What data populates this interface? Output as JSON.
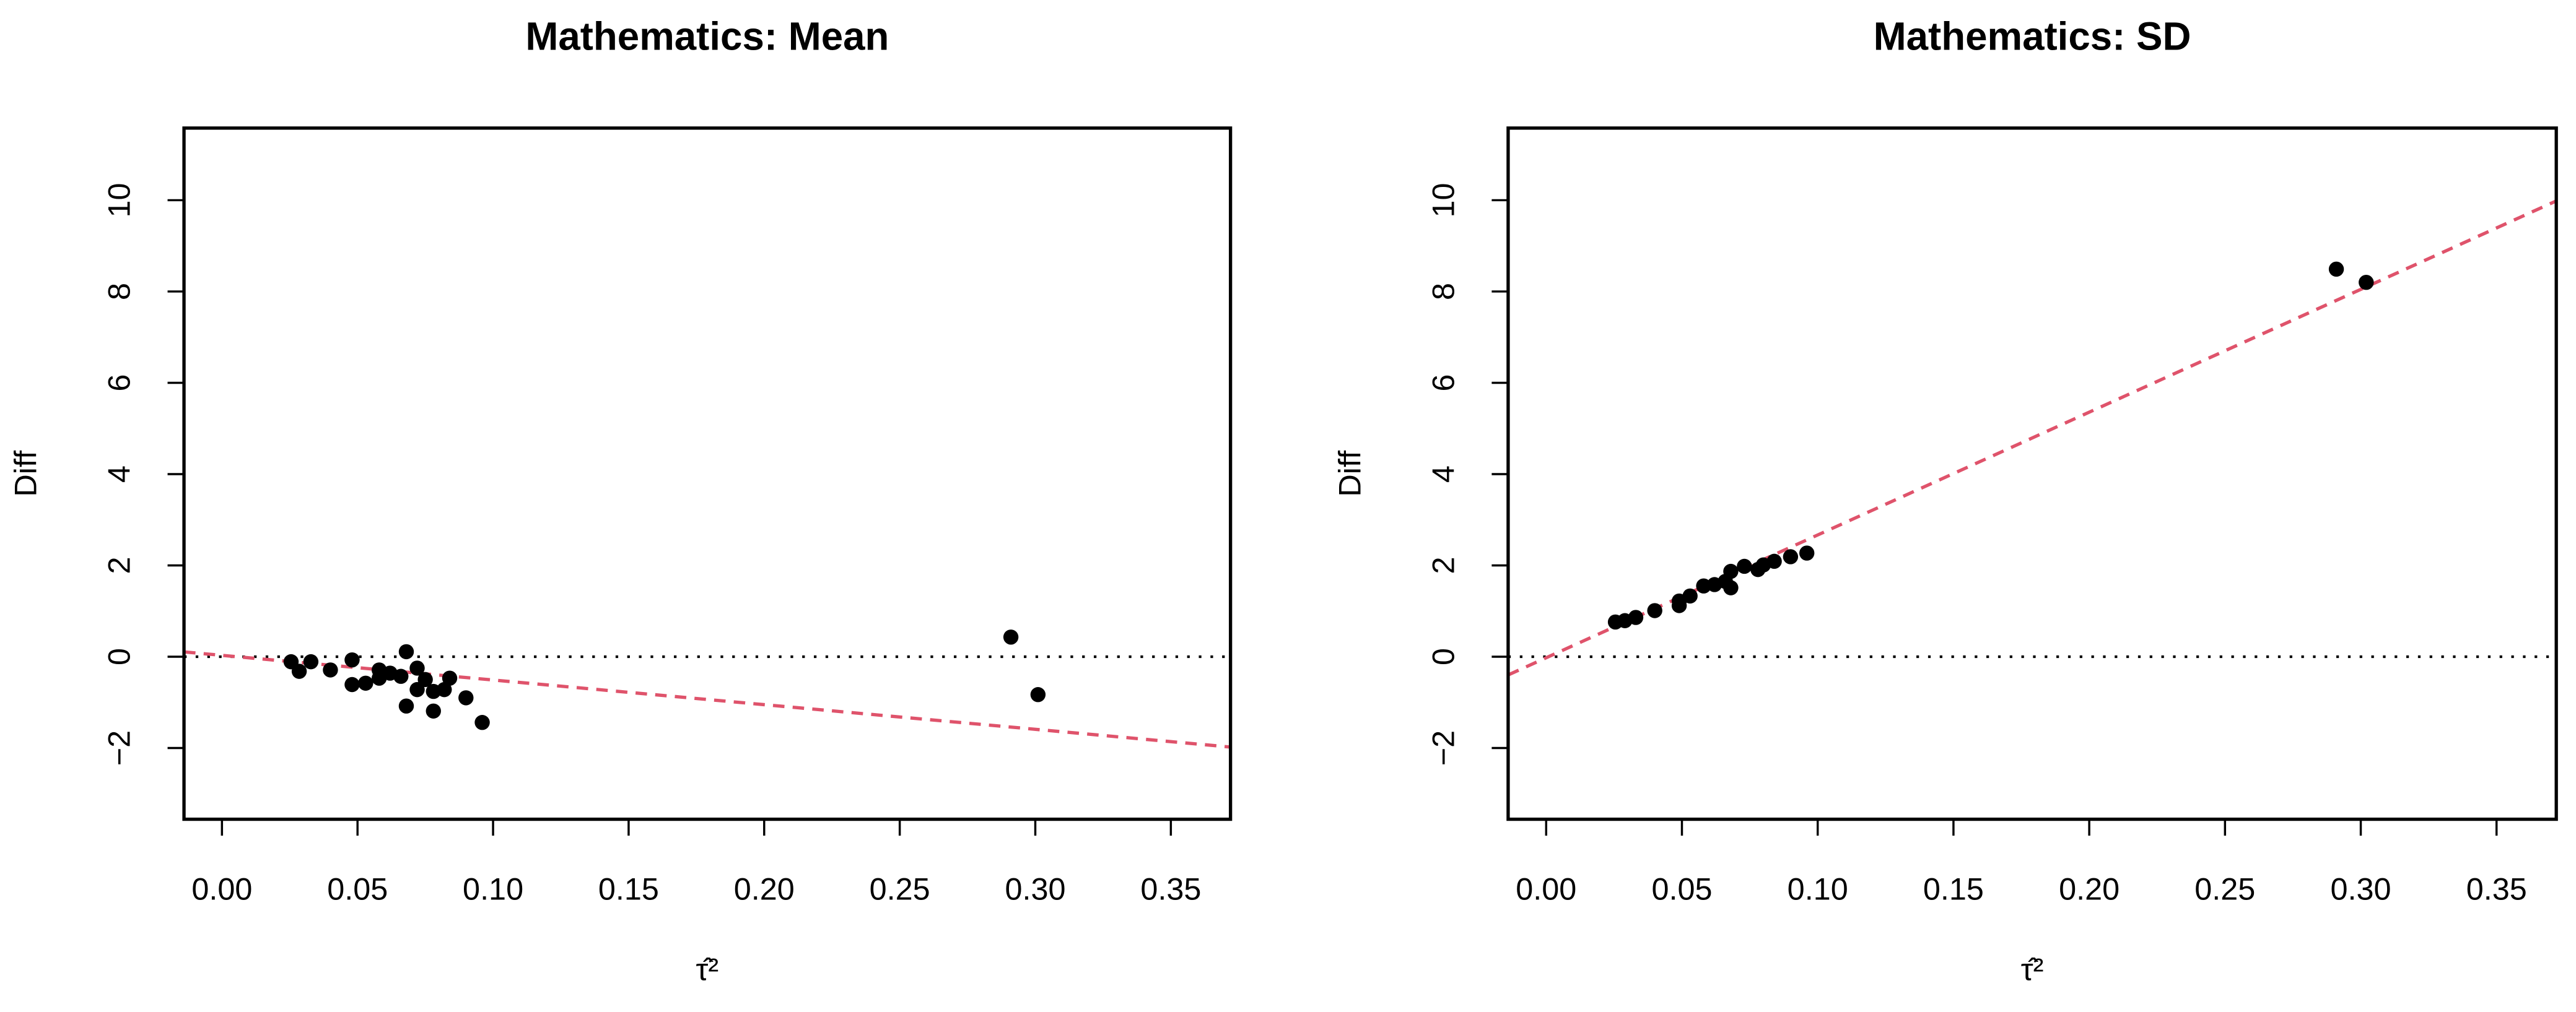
{
  "chart_data": [
    {
      "type": "scatter",
      "title": "Mathematics: Mean",
      "xlabel": "τ̂²",
      "ylabel": "Diff",
      "x": [
        0.0255,
        0.0285,
        0.0328,
        0.04,
        0.048,
        0.048,
        0.053,
        0.058,
        0.058,
        0.062,
        0.066,
        0.068,
        0.068,
        0.072,
        0.072,
        0.075,
        0.078,
        0.078,
        0.082,
        0.084,
        0.09,
        0.096,
        0.291,
        0.301
      ],
      "y": [
        -0.11,
        -0.32,
        -0.11,
        -0.29,
        -0.07,
        -0.61,
        -0.58,
        -0.29,
        -0.47,
        -0.36,
        -0.43,
        0.11,
        -1.08,
        -0.25,
        -0.72,
        -0.5,
        -0.76,
        -1.19,
        -0.72,
        -0.47,
        -0.9,
        -1.44,
        0.43,
        -0.83
      ],
      "color": "#000000",
      "xlim": [
        -0.014,
        0.372
      ],
      "ylim": [
        -3.56,
        11.58
      ],
      "xticks": [
        {
          "value": 0,
          "label": "0.00"
        },
        {
          "value": 0.05,
          "label": "0.05"
        },
        {
          "value": 0.1,
          "label": "0.10"
        },
        {
          "value": 0.15,
          "label": "0.15"
        },
        {
          "value": 0.2,
          "label": "0.20"
        },
        {
          "value": 0.25,
          "label": "0.25"
        },
        {
          "value": 0.3,
          "label": "0.30"
        },
        {
          "value": 0.35,
          "label": "0.35"
        }
      ],
      "yticks": [
        {
          "value": -2,
          "label": "−2"
        },
        0,
        2,
        4,
        6,
        8,
        10
      ],
      "fit_line": {
        "intercept": 0.03,
        "slope": -5.4,
        "color": "#DF536B"
      },
      "hline": 0
    },
    {
      "type": "scatter",
      "title": "Mathematics: SD",
      "xlabel": "τ̂²",
      "ylabel": "Diff",
      "x": [
        0.0255,
        0.029,
        0.033,
        0.04,
        0.049,
        0.049,
        0.053,
        0.058,
        0.062,
        0.066,
        0.068,
        0.068,
        0.073,
        0.078,
        0.08,
        0.084,
        0.09,
        0.096,
        0.291,
        0.302
      ],
      "y": [
        0.76,
        0.79,
        0.86,
        1.01,
        1.22,
        1.12,
        1.33,
        1.55,
        1.58,
        1.65,
        1.51,
        1.87,
        1.98,
        1.91,
        2.01,
        2.09,
        2.19,
        2.27,
        8.49,
        8.2
      ],
      "color": "#000000",
      "xlim": [
        -0.014,
        0.372
      ],
      "ylim": [
        -3.56,
        11.58
      ],
      "xticks": [
        {
          "value": 0,
          "label": "0.00"
        },
        {
          "value": 0.05,
          "label": "0.05"
        },
        {
          "value": 0.1,
          "label": "0.10"
        },
        {
          "value": 0.15,
          "label": "0.15"
        },
        {
          "value": 0.2,
          "label": "0.20"
        },
        {
          "value": 0.25,
          "label": "0.25"
        },
        {
          "value": 0.3,
          "label": "0.30"
        },
        {
          "value": 0.35,
          "label": "0.35"
        }
      ],
      "yticks": [
        {
          "value": -2,
          "label": "−2"
        },
        0,
        2,
        4,
        6,
        8,
        10
      ],
      "fit_line": {
        "intercept": -0.023,
        "slope": 26.9,
        "color": "#DF536B"
      },
      "hline": 0
    }
  ]
}
